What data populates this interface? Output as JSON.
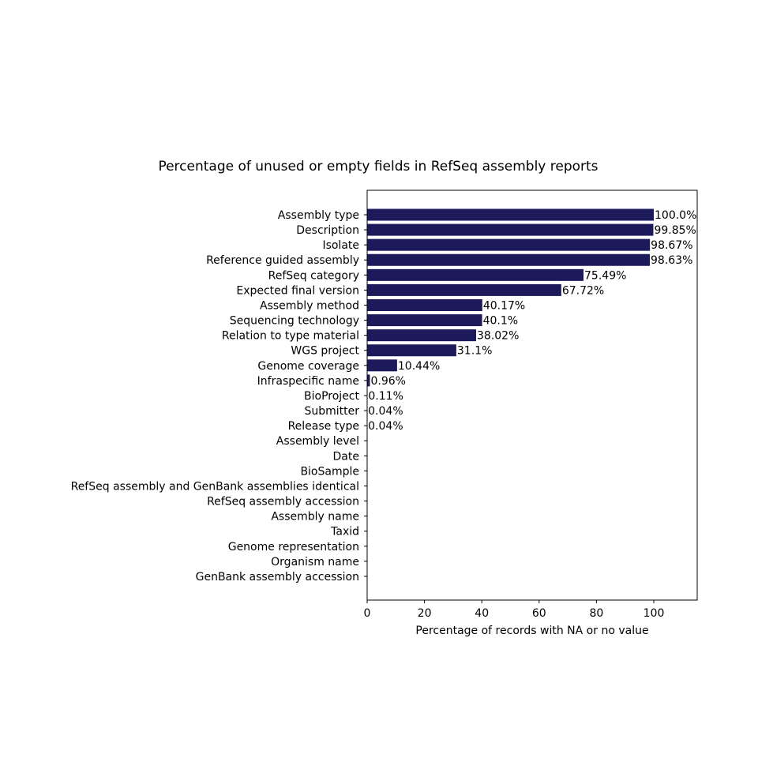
{
  "chart_data": {
    "type": "bar",
    "orientation": "horizontal",
    "title": "Percentage of unused or empty fields in RefSeq assembly reports",
    "xlabel": "Percentage of records with NA or no value",
    "ylabel": "",
    "xlim": [
      0,
      115
    ],
    "xticks": [
      0,
      20,
      40,
      60,
      80,
      100
    ],
    "xtick_labels": [
      "0",
      "20",
      "40",
      "60",
      "80",
      "100"
    ],
    "bar_color": "#1c1a5a",
    "grid": false,
    "legend": "none",
    "categories": [
      "Assembly type",
      "Description",
      "Isolate",
      "Reference guided assembly",
      "RefSeq category",
      "Expected final version",
      "Assembly method",
      "Sequencing technology",
      "Relation to type material",
      "WGS project",
      "Genome coverage",
      "Infraspecific name",
      "BioProject",
      "Submitter",
      "Release type",
      "Assembly level",
      "Date",
      "BioSample",
      "RefSeq assembly and GenBank assemblies identical",
      "RefSeq assembly accession",
      "Assembly name",
      "Taxid",
      "Genome representation",
      "Organism name",
      "GenBank assembly accession"
    ],
    "values": [
      100.0,
      99.85,
      98.67,
      98.63,
      75.49,
      67.72,
      40.17,
      40.1,
      38.02,
      31.1,
      10.44,
      0.96,
      0.11,
      0.04,
      0.04,
      0,
      0,
      0,
      0,
      0,
      0,
      0,
      0,
      0,
      0
    ],
    "data_labels": [
      "100.0%",
      "99.85%",
      "98.67%",
      "98.63%",
      "75.49%",
      "67.72%",
      "40.17%",
      "40.1%",
      "38.02%",
      "31.1%",
      "10.44%",
      "0.96%",
      "0.11%",
      "0.04%",
      "0.04%",
      "",
      "",
      "",
      "",
      "",
      "",
      "",
      "",
      "",
      ""
    ]
  }
}
